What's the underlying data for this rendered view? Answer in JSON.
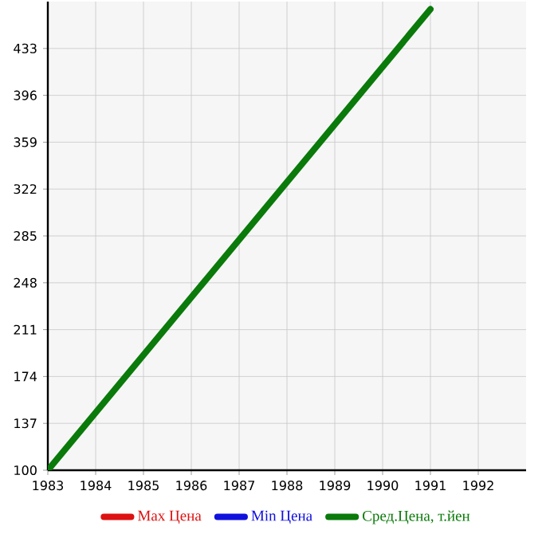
{
  "chart_data": {
    "type": "line",
    "x": [
      1983,
      1991
    ],
    "series": [
      {
        "name": "Max Цена",
        "color": "#dd1111",
        "values": [
          null,
          null
        ]
      },
      {
        "name": "Min Цена",
        "color": "#1111dd",
        "values": [
          null,
          null
        ]
      },
      {
        "name": "Сред.Цена, т.йен",
        "color": "#0a7a0a",
        "values": [
          100,
          464
        ]
      }
    ],
    "xlim": [
      1983,
      1993
    ],
    "ylim": [
      100,
      470
    ],
    "xticks": [
      1983,
      1984,
      1985,
      1986,
      1987,
      1988,
      1989,
      1990,
      1991,
      1992
    ],
    "yticks": [
      100,
      137,
      174,
      211,
      248,
      285,
      322,
      359,
      396,
      433
    ],
    "grid": true,
    "legend": "bottom",
    "marker": "none",
    "line_style": "solid"
  }
}
